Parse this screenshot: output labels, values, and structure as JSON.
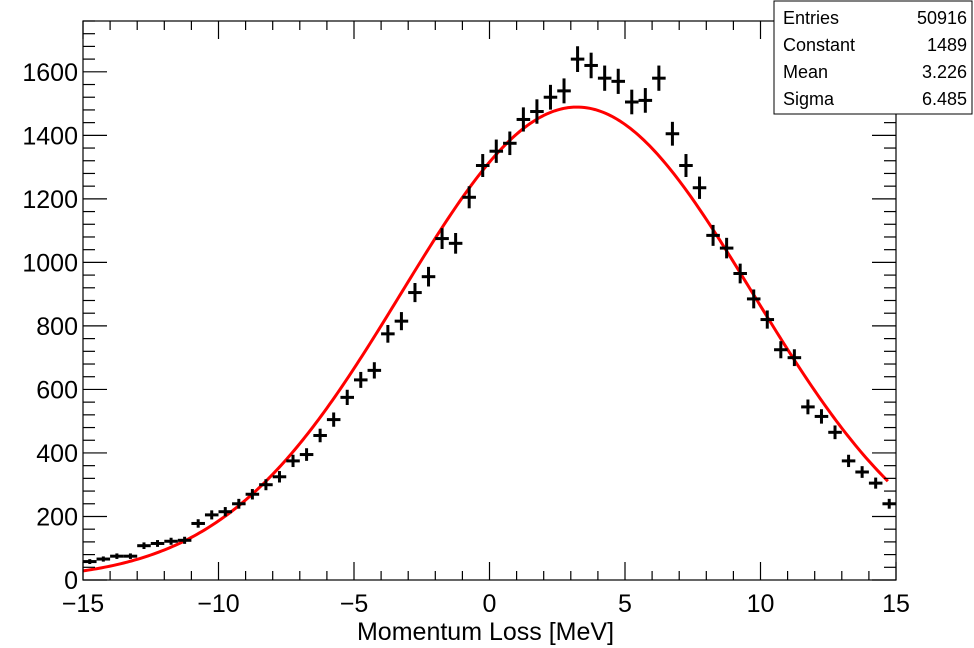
{
  "chart_data": {
    "type": "scatter",
    "title": "",
    "xlabel": "Momentum Loss [MeV]",
    "ylabel": "",
    "xlim": [
      -15,
      15
    ],
    "ylim": [
      0,
      1760
    ],
    "x_ticks": [
      -15,
      -10,
      -5,
      0,
      5,
      10,
      15
    ],
    "x_tick_labels": [
      "−15",
      "−10",
      "−5",
      "0",
      "5",
      "10",
      "15"
    ],
    "y_ticks": [
      0,
      200,
      400,
      600,
      800,
      1000,
      1200,
      1400,
      1600
    ],
    "y_tick_labels": [
      "0",
      "200",
      "400",
      "600",
      "800",
      "1000",
      "1200",
      "1400",
      "1600"
    ],
    "grid": false,
    "bin_width": 0.5,
    "series": [
      {
        "type": "histogram-points",
        "color": "#000000",
        "x": [
          -14.75,
          -14.25,
          -13.75,
          -13.25,
          -12.75,
          -12.25,
          -11.75,
          -11.25,
          -10.75,
          -10.25,
          -9.75,
          -9.25,
          -8.75,
          -8.25,
          -7.75,
          -7.25,
          -6.75,
          -6.25,
          -5.75,
          -5.25,
          -4.75,
          -4.25,
          -3.75,
          -3.25,
          -2.75,
          -2.25,
          -1.75,
          -1.25,
          -0.75,
          -0.25,
          0.25,
          0.75,
          1.25,
          1.75,
          2.25,
          2.75,
          3.25,
          3.75,
          4.25,
          4.75,
          5.25,
          5.75,
          6.25,
          6.75,
          7.25,
          7.75,
          8.25,
          8.75,
          9.25,
          9.75,
          10.25,
          10.75,
          11.25,
          11.75,
          12.25,
          12.75,
          13.25,
          13.75,
          14.25,
          14.75
        ],
        "y": [
          58,
          66,
          75,
          75,
          108,
          115,
          122,
          125,
          178,
          205,
          215,
          240,
          270,
          300,
          325,
          375,
          395,
          455,
          505,
          575,
          630,
          660,
          775,
          815,
          905,
          955,
          1075,
          1060,
          1205,
          1305,
          1350,
          1375,
          1450,
          1475,
          1520,
          1540,
          1640,
          1620,
          1580,
          1570,
          1505,
          1510,
          1580,
          1405,
          1305,
          1235,
          1085,
          1045,
          965,
          885,
          820,
          725,
          700,
          545,
          515,
          465,
          375,
          340,
          305,
          240
        ]
      },
      {
        "type": "gaussian-fit",
        "color": "#ff0000",
        "constant": 1489,
        "mean": 3.226,
        "sigma": 6.485,
        "x_range": [
          -15,
          14.75
        ]
      }
    ],
    "stats_box": {
      "position": "top-right",
      "rows": [
        {
          "label": "Entries",
          "value": "50916"
        },
        {
          "label": "Constant",
          "value": "1489"
        },
        {
          "label": "Mean",
          "value": "3.226"
        },
        {
          "label": "Sigma",
          "value": "6.485"
        }
      ]
    }
  }
}
